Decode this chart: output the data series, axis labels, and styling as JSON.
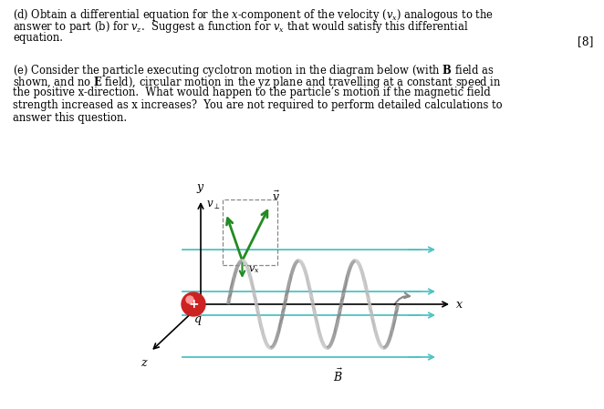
{
  "background_color": "#ffffff",
  "fig_width": 6.62,
  "fig_height": 4.49,
  "dpi": 100,
  "part_d_lines": [
    "(d) Obtain a differential equation for the x-component of the velocity (v_x) analogous to the",
    "answer to part (b) for v_z.  Suggest a function for v_x that would satisfy this differential",
    "equation."
  ],
  "score": "[8]",
  "part_e_lines": [
    "(e) Consider the particle executing cyclotron motion in the diagram below (with B field as",
    "shown, and no E field), circular motion in the yz plane and travelling at a constant speed in",
    "the positive x-direction.  What would happen to the particle’s motion if the magnetic field",
    "strength increased as x increases?  You are not required to perform detailed calculations to",
    "answer this question."
  ],
  "helix_color_front": "#888888",
  "helix_color_back": "#bbbbbb",
  "cyan_color": "#4FC3C3",
  "green_color": "#228B22",
  "particle_color": "#cc2222",
  "particle_highlight": "#ff9999"
}
